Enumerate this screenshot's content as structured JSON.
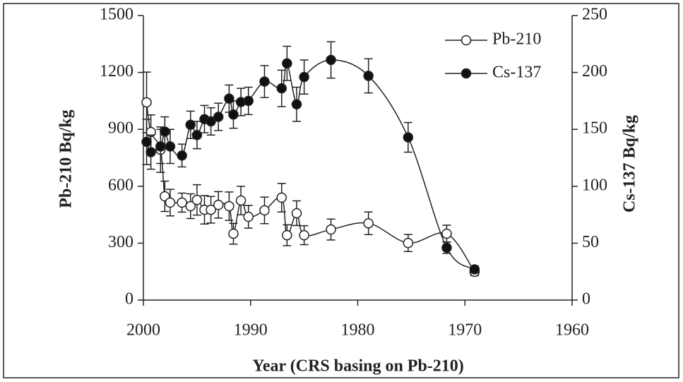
{
  "chart_data": {
    "type": "line",
    "x_label": "Year (CRS basing on Pb-210)",
    "y_label": "Pb-210 Bq/kg",
    "y2_label": "Cs-137 Bq/kg",
    "x": [
      1999.7,
      1999.3,
      1998.4,
      1998,
      1997.5,
      1996.4,
      1995.6,
      1995,
      1994.3,
      1993.7,
      1993,
      1992,
      1991.6,
      1990.9,
      1990.2,
      1988.7,
      1987.1,
      1986.6,
      1985.7,
      1985,
      1982.5,
      1979,
      1975.3,
      1971.7,
      1969.1
    ],
    "xlim": [
      2000,
      1960
    ],
    "xticks": [
      2000,
      1990,
      1980,
      1970,
      1960
    ],
    "ylim": [
      0,
      1500
    ],
    "yticks": [
      0,
      300,
      600,
      900,
      1200,
      1500
    ],
    "y2lim": [
      0,
      250
    ],
    "y2ticks": [
      0,
      50,
      100,
      150,
      200,
      250
    ],
    "legend": "upper right",
    "series": [
      {
        "name": "Pb-210",
        "color": "#ffffff",
        "marker": "open",
        "values": [
          1042,
          886,
          793,
          547,
          514,
          514,
          495,
          528,
          476,
          476,
          502,
          495,
          350,
          525,
          439,
          473,
          540,
          342,
          458,
          342,
          372,
          405,
          301,
          350,
          149
        ],
        "errors": [
          160,
          90,
          120,
          80,
          70,
          50,
          65,
          80,
          75,
          70,
          70,
          75,
          55,
          75,
          60,
          70,
          75,
          55,
          65,
          50,
          55,
          60,
          45,
          45,
          20
        ]
      },
      {
        "name": "Cs-137",
        "color": "#111111",
        "marker": "filled",
        "axis": "y2",
        "values": [
          139,
          130,
          135,
          148,
          135,
          127,
          154,
          145,
          159,
          157,
          161,
          177,
          163,
          174,
          175,
          192,
          186,
          208,
          172,
          196,
          211,
          197,
          143,
          46,
          27
        ],
        "errors": [
          20,
          15,
          15,
          13,
          15,
          10,
          12,
          12,
          12,
          12,
          12,
          12,
          12,
          12,
          12,
          14,
          16,
          15,
          15,
          15,
          16,
          15,
          13,
          5,
          3
        ]
      }
    ]
  }
}
